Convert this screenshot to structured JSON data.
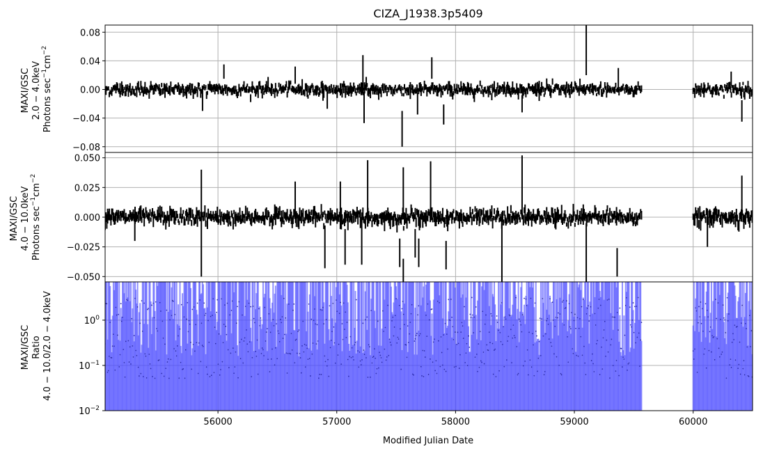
{
  "title": "CIZA_J1938.3p5409",
  "colors": {
    "lightcurve": "#000000",
    "ratio": "#4a4aff",
    "grid": "#b0b0b0",
    "axes": "#000000"
  },
  "chart_data": [
    {
      "type": "line",
      "panel": "soft",
      "ylabel_lines": [
        "MAXI/GSC",
        "2.0 − 4.0keV"
      ],
      "ylabel_units_base": "Photons sec",
      "ylabel_units_sup1": "−1",
      "ylabel_units_mid": "cm",
      "ylabel_units_sup2": "−2",
      "xlim": [
        55050,
        60500
      ],
      "ylim": [
        -0.088,
        0.09
      ],
      "yticks": [
        -0.08,
        -0.04,
        0.0,
        0.04,
        0.08
      ],
      "ytick_labels": [
        "−0.08",
        "−0.04",
        "0.00",
        "0.04",
        "0.08"
      ],
      "grid": true,
      "segments": [
        [
          55050,
          59570
        ],
        [
          60000,
          60500
        ]
      ],
      "bin_days": 7,
      "noise_sigma": 0.0035,
      "err_sigma": 0.005,
      "spikes": [
        {
          "x": 55870,
          "y": -0.015,
          "err": 0.015
        },
        {
          "x": 56050,
          "y": 0.025,
          "err": 0.01
        },
        {
          "x": 56650,
          "y": 0.02,
          "err": 0.012
        },
        {
          "x": 56920,
          "y": -0.015,
          "err": 0.012
        },
        {
          "x": 57220,
          "y": 0.02,
          "err": 0.028
        },
        {
          "x": 57230,
          "y": -0.025,
          "err": 0.022
        },
        {
          "x": 57550,
          "y": -0.055,
          "err": 0.025
        },
        {
          "x": 57680,
          "y": -0.02,
          "err": 0.015
        },
        {
          "x": 57800,
          "y": 0.03,
          "err": 0.015
        },
        {
          "x": 57900,
          "y": -0.035,
          "err": 0.014
        },
        {
          "x": 58560,
          "y": -0.02,
          "err": 0.012
        },
        {
          "x": 59100,
          "y": 0.055,
          "err": 0.035
        },
        {
          "x": 59370,
          "y": 0.015,
          "err": 0.015
        },
        {
          "x": 60320,
          "y": 0.015,
          "err": 0.01
        },
        {
          "x": 60410,
          "y": -0.03,
          "err": 0.015
        }
      ]
    },
    {
      "type": "line",
      "panel": "hard",
      "ylabel_lines": [
        "MAXI/GSC",
        "4.0 − 10.0keV"
      ],
      "ylabel_units_base": "Photons sec",
      "ylabel_units_sup1": "−1",
      "ylabel_units_mid": "cm",
      "ylabel_units_sup2": "−2",
      "xlim": [
        55050,
        60500
      ],
      "ylim": [
        -0.0545,
        0.0545
      ],
      "yticks": [
        -0.05,
        -0.025,
        0.0,
        0.025,
        0.05
      ],
      "ytick_labels": [
        "−0.050",
        "−0.025",
        "0.000",
        "0.025",
        "0.050"
      ],
      "grid": true,
      "segments": [
        [
          55050,
          59570
        ],
        [
          60000,
          60500
        ]
      ],
      "bin_days": 7,
      "noise_sigma": 0.0025,
      "err_sigma": 0.004,
      "spikes": [
        {
          "x": 55300,
          "y": -0.012,
          "err": 0.008
        },
        {
          "x": 55860,
          "y": -0.005,
          "err": 0.045
        },
        {
          "x": 56650,
          "y": 0.015,
          "err": 0.015
        },
        {
          "x": 56900,
          "y": -0.025,
          "err": 0.018
        },
        {
          "x": 57030,
          "y": 0.01,
          "err": 0.02
        },
        {
          "x": 57070,
          "y": -0.025,
          "err": 0.015
        },
        {
          "x": 57210,
          "y": -0.02,
          "err": 0.02
        },
        {
          "x": 57260,
          "y": 0.02,
          "err": 0.028
        },
        {
          "x": 57530,
          "y": -0.03,
          "err": 0.012
        },
        {
          "x": 57560,
          "y": 0.02,
          "err": 0.022
        },
        {
          "x": 57560,
          "y": -0.045,
          "err": 0.01
        },
        {
          "x": 57660,
          "y": -0.022,
          "err": 0.012
        },
        {
          "x": 57690,
          "y": -0.03,
          "err": 0.012
        },
        {
          "x": 57790,
          "y": 0.022,
          "err": 0.025
        },
        {
          "x": 57920,
          "y": -0.032,
          "err": 0.012
        },
        {
          "x": 58390,
          "y": -0.03,
          "err": 0.025
        },
        {
          "x": 58560,
          "y": 0.025,
          "err": 0.027
        },
        {
          "x": 59100,
          "y": -0.03,
          "err": 0.025
        },
        {
          "x": 59360,
          "y": -0.038,
          "err": 0.012
        },
        {
          "x": 60120,
          "y": -0.015,
          "err": 0.01
        },
        {
          "x": 60410,
          "y": 0.02,
          "err": 0.015
        }
      ]
    },
    {
      "type": "line",
      "panel": "ratio",
      "ylabel_lines": [
        "MAXI/GSC",
        "Ratio",
        "4.0 − 10.0/2.0 − 4.0keV"
      ],
      "xlim": [
        55050,
        60500
      ],
      "ylim": [
        0.01,
        7
      ],
      "yscale": "log",
      "yticks": [
        0.01,
        0.1,
        1.0
      ],
      "ytick_labels": [
        {
          "base": "10",
          "exp": "−2"
        },
        {
          "base": "10",
          "exp": "−1"
        },
        {
          "base": "10",
          "exp": "0"
        }
      ],
      "grid": true,
      "segments": [
        [
          55050,
          59570
        ],
        [
          60000,
          60500
        ]
      ],
      "bin_days": 7,
      "xticks": [
        56000,
        57000,
        58000,
        59000,
        60000
      ],
      "xtick_labels": [
        "56000",
        "57000",
        "58000",
        "59000",
        "60000"
      ],
      "xlabel": "Modified Julian Date"
    }
  ]
}
